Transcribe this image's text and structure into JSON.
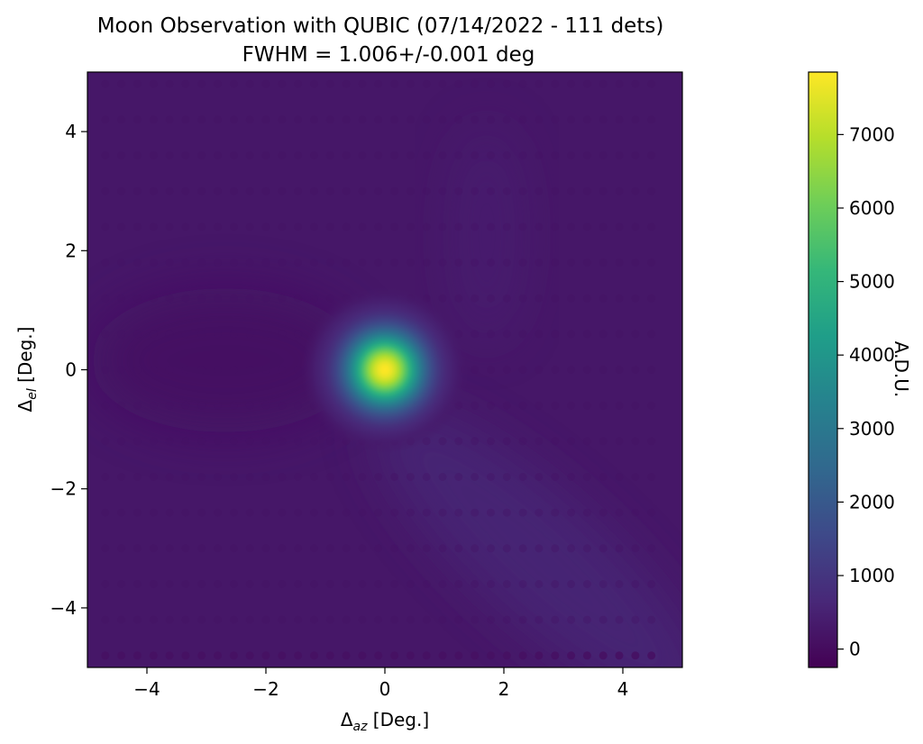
{
  "chart_data": {
    "type": "heatmap",
    "title": "Moon Observation with QUBIC (07/14/2022 - 111 dets)",
    "subtitle": "FWHM = 1.006+/-0.001 deg",
    "xlabel": {
      "main": "Δ",
      "sub": "az",
      "unit": " [Deg.]"
    },
    "ylabel": {
      "main": "Δ",
      "sub": "el",
      "unit": " [Deg.]"
    },
    "xlim": [
      -5,
      5
    ],
    "ylim": [
      -5,
      5
    ],
    "x_ticks": [
      -4,
      -2,
      0,
      2,
      4
    ],
    "y_ticks": [
      -4,
      -2,
      0,
      2,
      4
    ],
    "colormap": "viridis",
    "color_range": [
      -250,
      7850
    ],
    "colorbar": {
      "label": "A.D.U.",
      "ticks": [
        0,
        1000,
        2000,
        3000,
        4000,
        5000,
        6000,
        7000
      ]
    },
    "source": {
      "center": [
        0,
        0
      ],
      "fwhm_deg": 1.006,
      "peak_value": 7850
    },
    "background_level": 250,
    "grid": false
  }
}
